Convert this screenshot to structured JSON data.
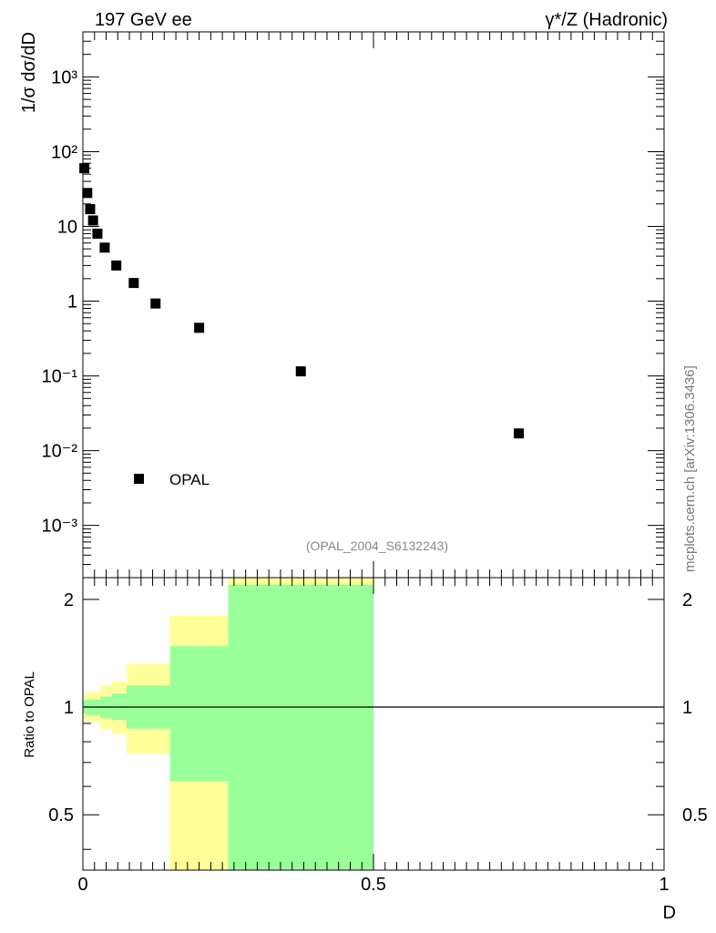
{
  "header": {
    "left": "197 GeV ee",
    "right": "γ*/Z (Hadronic)",
    "side_credit": "mcplots.cern.ch [arXiv:1306.3436]"
  },
  "chart_data": [
    {
      "type": "scatter",
      "panel": "main",
      "yscale": "log",
      "ylabel": "1/σ dσ/dD",
      "xlim": [
        0,
        1
      ],
      "ylim": [
        0.0002,
        4000
      ],
      "y_tick_labels": [
        "10⁻³",
        "10⁻²",
        "10⁻¹",
        "1",
        "10",
        "10²",
        "10³"
      ],
      "y_tick_values": [
        0.001,
        0.01,
        0.1,
        1,
        10,
        100,
        1000
      ],
      "series": [
        {
          "name": "OPAL",
          "marker": "square",
          "color": "#000000",
          "x": [
            0.0025,
            0.0075,
            0.0125,
            0.0175,
            0.025,
            0.0375,
            0.0575,
            0.0875,
            0.125,
            0.2,
            0.375,
            0.75
          ],
          "y": [
            60,
            28,
            17,
            12,
            8.0,
            5.2,
            3.0,
            1.75,
            0.93,
            0.44,
            0.115,
            0.017
          ]
        }
      ],
      "legend": {
        "label": "OPAL",
        "position": "bottom-left"
      },
      "annotation": "(OPAL_2004_S6132243)"
    },
    {
      "type": "area",
      "panel": "ratio",
      "ylabel": "Ratio to OPAL",
      "xlabel": "D",
      "xlim": [
        0,
        1
      ],
      "ylim": [
        0.35,
        2.3
      ],
      "x_tick_labels": [
        "0",
        "0.5",
        "1"
      ],
      "x_tick_values": [
        0,
        0.5,
        1
      ],
      "y_tick_labels": [
        "0.5",
        "1",
        "2"
      ],
      "y_tick_values": [
        0.5,
        1,
        2
      ],
      "reference_line": 1,
      "bins": [
        {
          "xlo": 0.0,
          "xhi": 0.005,
          "stat_lo": 0.96,
          "stat_hi": 1.04,
          "tot_lo": 0.93,
          "tot_hi": 1.08
        },
        {
          "xlo": 0.005,
          "xhi": 0.03,
          "stat_lo": 0.95,
          "stat_hi": 1.05,
          "tot_lo": 0.91,
          "tot_hi": 1.1
        },
        {
          "xlo": 0.03,
          "xhi": 0.05,
          "stat_lo": 0.93,
          "stat_hi": 1.07,
          "tot_lo": 0.87,
          "tot_hi": 1.15
        },
        {
          "xlo": 0.05,
          "xhi": 0.075,
          "stat_lo": 0.92,
          "stat_hi": 1.09,
          "tot_lo": 0.84,
          "tot_hi": 1.18
        },
        {
          "xlo": 0.075,
          "xhi": 0.15,
          "stat_lo": 0.87,
          "stat_hi": 1.15,
          "tot_lo": 0.74,
          "tot_hi": 1.32
        },
        {
          "xlo": 0.15,
          "xhi": 0.25,
          "stat_lo": 0.62,
          "stat_hi": 1.48,
          "tot_lo": 0.35,
          "tot_hi": 1.8
        },
        {
          "xlo": 0.25,
          "xhi": 0.5,
          "stat_lo": 0.35,
          "stat_hi": 2.2,
          "tot_lo": 0.35,
          "tot_hi": 2.3
        }
      ],
      "colors": {
        "stat": "#99ff99",
        "total": "#ffff99"
      }
    }
  ]
}
